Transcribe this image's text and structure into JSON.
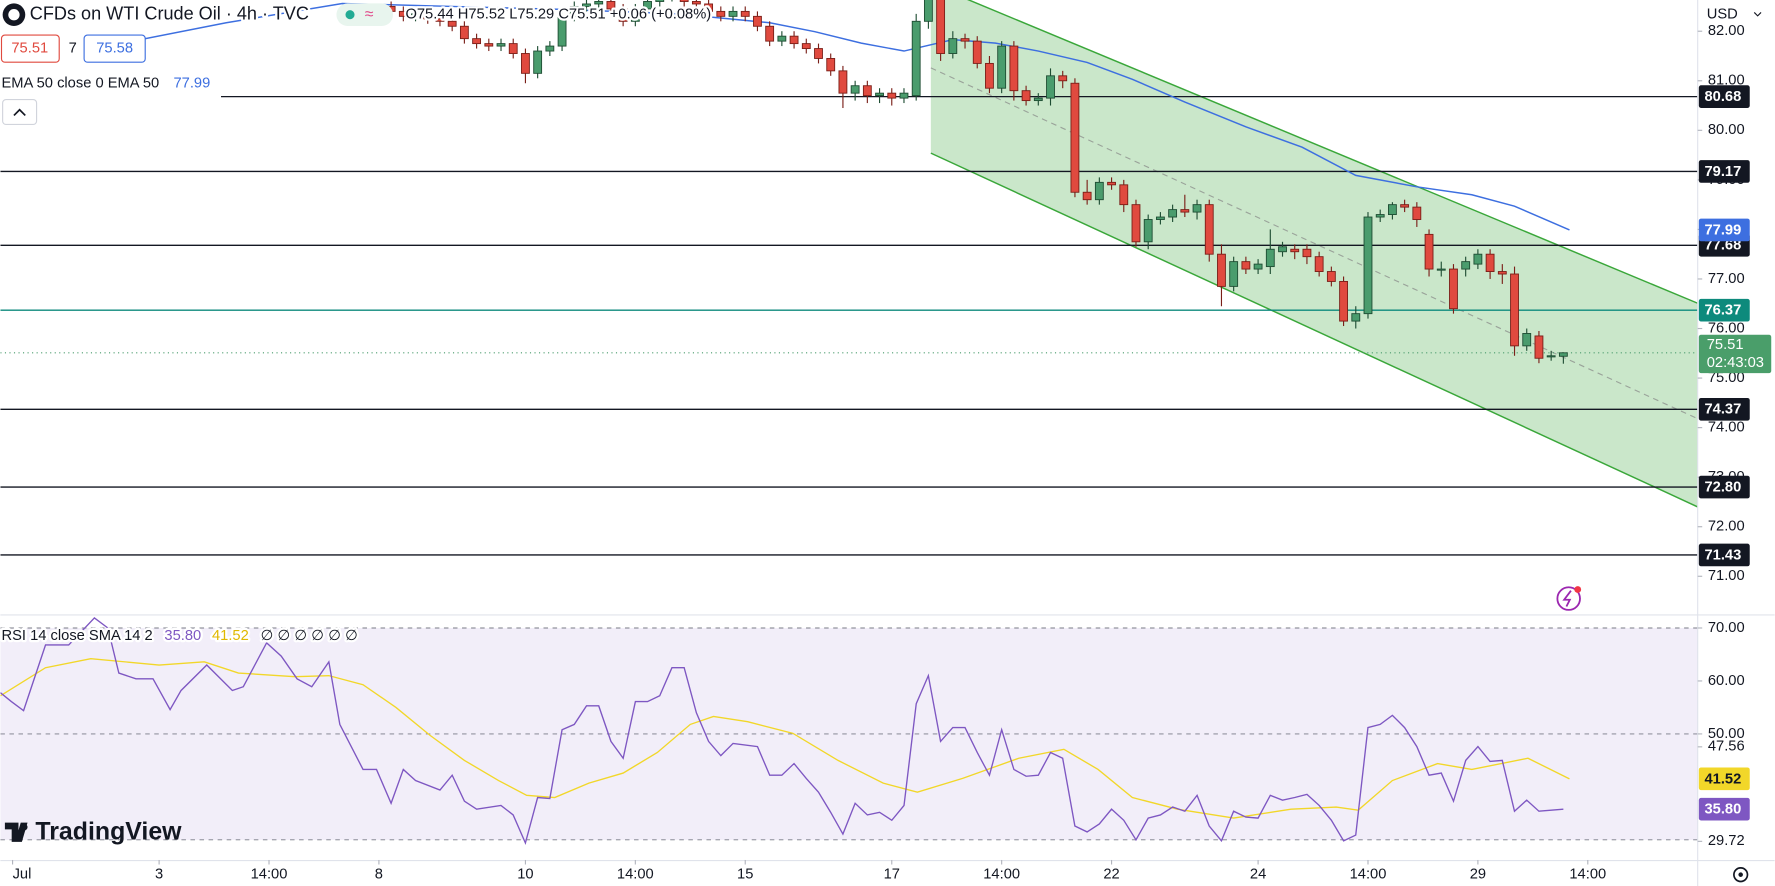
{
  "ui": {
    "title": "CFDs on WTI Crude Oil · 4h · TVC",
    "ohlc": "O75.44 H75.52 L75.29 C75.51 +0.06 (+0.08%)",
    "spread": 7,
    "ask": "75.58",
    "currency": "USD",
    "countdown": "02:43:03",
    "logo": "TradingView"
  },
  "chart_data": [
    {
      "type": "candlestick",
      "xlim": [
        -32,
        107
      ],
      "ylim": [
        70.23,
        82.63
      ],
      "xticks": [
        {
          "value": -31,
          "label": "Jul"
        },
        {
          "value": -19,
          "label": "3"
        },
        {
          "value": -10,
          "label": "14:00"
        },
        {
          "value": -1,
          "label": "8"
        },
        {
          "value": 11,
          "label": "10"
        },
        {
          "value": 20,
          "label": "14:00"
        },
        {
          "value": 29,
          "label": "15"
        },
        {
          "value": 41,
          "label": "17"
        },
        {
          "value": 50,
          "label": "14:00"
        },
        {
          "value": 59,
          "label": "22"
        },
        {
          "value": 71,
          "label": "24"
        },
        {
          "value": 80,
          "label": "14:00"
        },
        {
          "value": 89,
          "label": "29"
        },
        {
          "value": 98,
          "label": "14:00"
        }
      ],
      "yticks": [
        {
          "value": 82,
          "label": "82.00"
        },
        {
          "value": 81,
          "label": "81.00"
        },
        {
          "value": 80,
          "label": "80.00"
        },
        {
          "value": 79,
          "label": "79.00"
        },
        {
          "value": 78,
          "label": "78.00"
        },
        {
          "value": 77,
          "label": "77.00"
        },
        {
          "value": 76,
          "label": "76.00"
        },
        {
          "value": 75,
          "label": "75.00"
        },
        {
          "value": 74,
          "label": "74.00"
        },
        {
          "value": 73,
          "label": "73.00"
        },
        {
          "value": 72,
          "label": "72.00"
        },
        {
          "value": 71,
          "label": "71.00"
        }
      ],
      "up_color": "#4a9c6d",
      "down_color": "#e04a3f",
      "open": [
        82.5,
        82.4,
        82.3,
        82.35,
        82.25,
        82.2,
        82.1,
        81.85,
        81.75,
        81.7,
        81.75,
        81.55,
        81.15,
        81.6,
        81.7,
        82.3,
        82.5,
        82.55,
        82.6,
        82.45,
        82.2,
        82.45,
        82.6,
        82.7,
        82.7,
        82.6,
        82.55,
        82.4,
        82.3,
        82.4,
        82.3,
        82.1,
        81.8,
        81.9,
        81.75,
        81.65,
        81.45,
        81.2,
        80.75,
        80.9,
        80.7,
        80.75,
        80.65,
        80.7,
        82.2,
        82.65,
        81.55,
        81.85,
        81.8,
        81.35,
        80.85,
        81.7,
        80.8,
        80.6,
        80.65,
        81.1,
        80.95,
        78.75,
        78.6,
        78.95,
        78.9,
        78.5,
        77.75,
        78.2,
        78.25,
        78.4,
        78.35,
        78.5,
        77.5,
        76.85,
        77.35,
        77.2,
        77.25,
        77.55,
        77.6,
        77.6,
        77.45,
        77.15,
        76.95,
        76.15,
        76.3,
        78.25,
        78.3,
        78.5,
        78.45,
        77.9,
        77.2,
        77.2,
        77.2,
        77.3,
        77.5,
        77.15,
        77.1,
        75.65,
        75.85,
        75.45,
        75.44
      ],
      "high": [
        82.6,
        82.5,
        82.45,
        82.45,
        82.35,
        82.3,
        82.2,
        81.95,
        81.85,
        81.85,
        81.85,
        81.65,
        81.7,
        81.8,
        82.4,
        82.6,
        82.65,
        82.7,
        82.7,
        82.55,
        82.55,
        82.7,
        82.8,
        82.8,
        82.8,
        82.7,
        82.65,
        82.5,
        82.5,
        82.5,
        82.4,
        82.2,
        82.0,
        82.0,
        81.85,
        81.75,
        81.55,
        81.3,
        81.0,
        81.0,
        80.85,
        80.85,
        80.85,
        82.35,
        82.75,
        82.7,
        82.0,
        81.95,
        81.9,
        81.5,
        81.8,
        81.8,
        80.9,
        80.75,
        81.25,
        81.2,
        81.05,
        79.0,
        79.05,
        79.05,
        79.0,
        78.6,
        78.3,
        78.35,
        78.5,
        78.7,
        78.6,
        78.6,
        77.7,
        77.45,
        77.45,
        77.4,
        78.0,
        77.75,
        77.7,
        77.7,
        77.55,
        77.25,
        77.05,
        76.45,
        78.35,
        78.4,
        78.55,
        78.6,
        78.55,
        78.0,
        77.35,
        77.3,
        77.45,
        77.6,
        77.6,
        77.3,
        77.25,
        76.0,
        75.95,
        75.55,
        75.52
      ],
      "low": [
        82.3,
        82.2,
        82.2,
        82.15,
        82.1,
        82.0,
        81.75,
        81.65,
        81.6,
        81.6,
        81.45,
        80.95,
        81.05,
        81.5,
        81.6,
        82.2,
        82.4,
        82.45,
        82.35,
        82.1,
        82.1,
        82.35,
        82.5,
        82.6,
        82.5,
        82.45,
        82.3,
        82.2,
        82.2,
        82.2,
        82.0,
        81.7,
        81.7,
        81.65,
        81.55,
        81.35,
        81.1,
        80.45,
        80.6,
        80.55,
        80.55,
        80.5,
        80.55,
        80.6,
        82.05,
        81.4,
        81.45,
        81.65,
        81.25,
        80.75,
        80.75,
        80.6,
        80.5,
        80.5,
        80.5,
        80.85,
        78.65,
        78.5,
        78.5,
        78.8,
        78.35,
        77.65,
        77.6,
        78.1,
        78.15,
        78.25,
        78.2,
        77.35,
        76.45,
        76.75,
        77.1,
        77.1,
        77.1,
        77.45,
        77.4,
        77.3,
        77.05,
        76.85,
        76.05,
        76.0,
        76.2,
        78.15,
        78.2,
        78.35,
        78.05,
        77.05,
        77.05,
        76.3,
        77.05,
        77.2,
        77.0,
        76.9,
        75.45,
        75.55,
        75.3,
        75.35,
        75.29
      ],
      "close": [
        82.4,
        82.3,
        82.35,
        82.25,
        82.2,
        82.1,
        81.85,
        81.75,
        81.7,
        81.75,
        81.55,
        81.15,
        81.6,
        81.7,
        82.3,
        82.5,
        82.55,
        82.6,
        82.45,
        82.2,
        82.45,
        82.6,
        82.7,
        82.7,
        82.6,
        82.55,
        82.4,
        82.3,
        82.4,
        82.3,
        82.1,
        81.8,
        81.9,
        81.75,
        81.65,
        81.45,
        81.2,
        80.75,
        80.9,
        80.7,
        80.75,
        80.65,
        80.75,
        82.2,
        82.7,
        81.55,
        81.85,
        81.8,
        81.35,
        80.85,
        81.7,
        80.8,
        80.6,
        80.65,
        81.1,
        81.0,
        78.75,
        78.6,
        78.95,
        78.9,
        78.5,
        77.75,
        78.2,
        78.25,
        78.4,
        78.35,
        78.5,
        77.5,
        76.85,
        77.35,
        77.2,
        77.3,
        77.6,
        77.65,
        77.55,
        77.45,
        77.15,
        76.95,
        76.15,
        76.3,
        78.25,
        78.3,
        78.5,
        78.45,
        78.2,
        77.2,
        77.2,
        76.4,
        77.35,
        77.5,
        77.15,
        77.1,
        75.65,
        75.9,
        75.4,
        75.45,
        75.51
      ],
      "series": [
        {
          "name": "EMA 50 close 0 EMA 50",
          "color": "#3d6fe0",
          "x": [
            -23,
            -13.5,
            -4,
            5,
            14,
            23.5,
            31,
            34.7,
            38.5,
            42,
            46,
            49.5,
            53,
            57,
            60.7,
            65,
            70,
            74.6,
            79,
            84,
            88.5,
            92,
            96.5
          ],
          "values": [
            81.71,
            82.17,
            82.56,
            82.5,
            82.44,
            82.35,
            82.17,
            81.99,
            81.76,
            81.6,
            81.83,
            81.76,
            81.6,
            81.37,
            81.03,
            80.57,
            80.07,
            79.66,
            79.09,
            78.86,
            78.7,
            78.47,
            77.99
          ]
        }
      ],
      "channel": {
        "x": [
          44.2,
          107
        ],
        "upper": [
          82.95,
          76.51
        ],
        "middle": [
          81.26,
          74.18
        ],
        "lower": [
          79.54,
          72.4
        ],
        "color": "#3aa73a"
      },
      "levels": [
        {
          "value": 80.68,
          "label": "80.68",
          "color": "#131722"
        },
        {
          "value": 79.17,
          "label": "79.17",
          "color": "#131722"
        },
        {
          "value": 77.68,
          "label": "77.68",
          "color": "#131722"
        },
        {
          "value": 76.37,
          "label": "76.37",
          "color": "#0d8a7c"
        },
        {
          "value": 74.37,
          "label": "74.37",
          "color": "#131722"
        },
        {
          "value": 72.8,
          "label": "72.80",
          "color": "#131722"
        },
        {
          "value": 71.43,
          "label": "71.43",
          "color": "#131722"
        }
      ]
    },
    {
      "type": "line",
      "ylim": [
        26.2,
        72.56
      ],
      "yticks": [
        {
          "value": 70,
          "label": "70.00"
        },
        {
          "value": 60,
          "label": "60.00"
        },
        {
          "value": 50,
          "label": "50.00"
        },
        {
          "value": 47.56,
          "label": "47.56"
        },
        {
          "value": 29.72,
          "label": "29.72"
        }
      ],
      "bands": [
        70,
        50,
        30
      ],
      "band_color": "#7e57c2",
      "series": [
        {
          "name": "RSI 14 close SMA 14 2",
          "color": "#7e57c2",
          "label": "35.80",
          "x": [
            -32,
            -31.1,
            -30.1,
            -28.3,
            -26.4,
            -24.3,
            -23.2,
            -22.3,
            -20.9,
            -19.5,
            -18.1,
            -17.2,
            -15.1,
            -13,
            -12.1,
            -10.2,
            -9,
            -7.7,
            -6.5,
            -5.1,
            -4.2,
            -2.3,
            -1.2,
            0,
            1,
            2,
            4,
            5,
            6,
            7,
            9,
            10,
            11,
            12,
            13,
            14,
            15,
            16,
            17,
            18,
            19,
            20,
            21,
            22,
            23,
            24,
            25,
            26,
            27,
            28,
            30,
            31,
            32,
            33,
            34,
            35,
            36,
            37,
            38,
            39,
            40,
            41,
            42,
            43,
            44,
            45,
            46,
            47,
            48,
            49,
            50,
            51,
            52,
            53,
            54,
            55,
            56,
            57,
            58,
            59,
            60,
            61,
            62,
            63,
            64,
            65,
            66,
            67,
            68,
            69,
            70,
            71,
            72,
            73,
            74,
            75,
            76,
            77,
            78,
            79,
            80,
            81,
            82,
            83,
            84,
            85,
            86,
            87,
            88,
            89,
            90,
            91,
            92,
            93,
            94,
            95,
            96
          ],
          "values": [
            57.8,
            56.1,
            54.4,
            66.8,
            66.8,
            71.9,
            70,
            61.5,
            60.4,
            60.4,
            54.6,
            58.2,
            63,
            58.2,
            58.9,
            67.2,
            64.7,
            60.4,
            58.9,
            63.6,
            51.8,
            43.3,
            43.3,
            36.9,
            43.3,
            41.2,
            39.4,
            42.2,
            37.3,
            35.8,
            36.5,
            34.7,
            29.4,
            38,
            37.8,
            50.8,
            51.8,
            55.3,
            55.3,
            48.6,
            45.4,
            56.1,
            56.1,
            57.2,
            62.5,
            62.5,
            54,
            48.6,
            45.9,
            48.2,
            47.6,
            42.2,
            42.2,
            44.4,
            41.6,
            39,
            35.2,
            31.1,
            36.9,
            34.7,
            35.2,
            33.7,
            36.5,
            55.7,
            61,
            48.6,
            51.2,
            51.2,
            46.5,
            42.2,
            50.8,
            43.3,
            42,
            42.2,
            46.5,
            45.4,
            32.6,
            31.5,
            33,
            35.8,
            33.7,
            30,
            34.1,
            34.7,
            36.2,
            35.4,
            38.4,
            32.6,
            29.8,
            35.4,
            34.3,
            34.1,
            38.4,
            37.5,
            38,
            38.6,
            36.5,
            33.7,
            29.8,
            30.9,
            51.2,
            51.8,
            53.5,
            51.2,
            47.6,
            42.2,
            42.6,
            37.3,
            45,
            47.6,
            44.8,
            45,
            35.4,
            37.5,
            35.4,
            35.6,
            35.8
          ]
        },
        {
          "name": "SMA",
          "color": "#f2d729",
          "label": "41.52",
          "x": [
            -32,
            -28.3,
            -24.6,
            -19,
            -15.3,
            -12.5,
            -7.9,
            -5.1,
            -2.3,
            0.4,
            3.2,
            6,
            8.8,
            11.1,
            13.4,
            16.2,
            19,
            21.8,
            24.5,
            26.4,
            29.2,
            32.9,
            36.6,
            40.3,
            43.1,
            46.8,
            51.4,
            55.1,
            57.9,
            60.7,
            64.4,
            69,
            73.7,
            77.4,
            79.2,
            82,
            85.7,
            88.5,
            93.1,
            96.5
          ],
          "values": [
            57.2,
            62.5,
            64.2,
            63,
            63.6,
            61.5,
            60.8,
            61,
            59.3,
            55,
            49.7,
            45,
            41.2,
            38.4,
            38,
            40.7,
            42.6,
            46.5,
            51.8,
            53.3,
            52.3,
            50.1,
            45,
            40.7,
            39,
            41.6,
            45.4,
            47.1,
            43.3,
            38,
            35.8,
            34.1,
            35.8,
            36.2,
            35.6,
            41.2,
            44.4,
            43.3,
            45.4,
            41.52
          ]
        }
      ],
      "legend_extra": "∅ ∅ ∅ ∅ ∅ ∅"
    }
  ]
}
